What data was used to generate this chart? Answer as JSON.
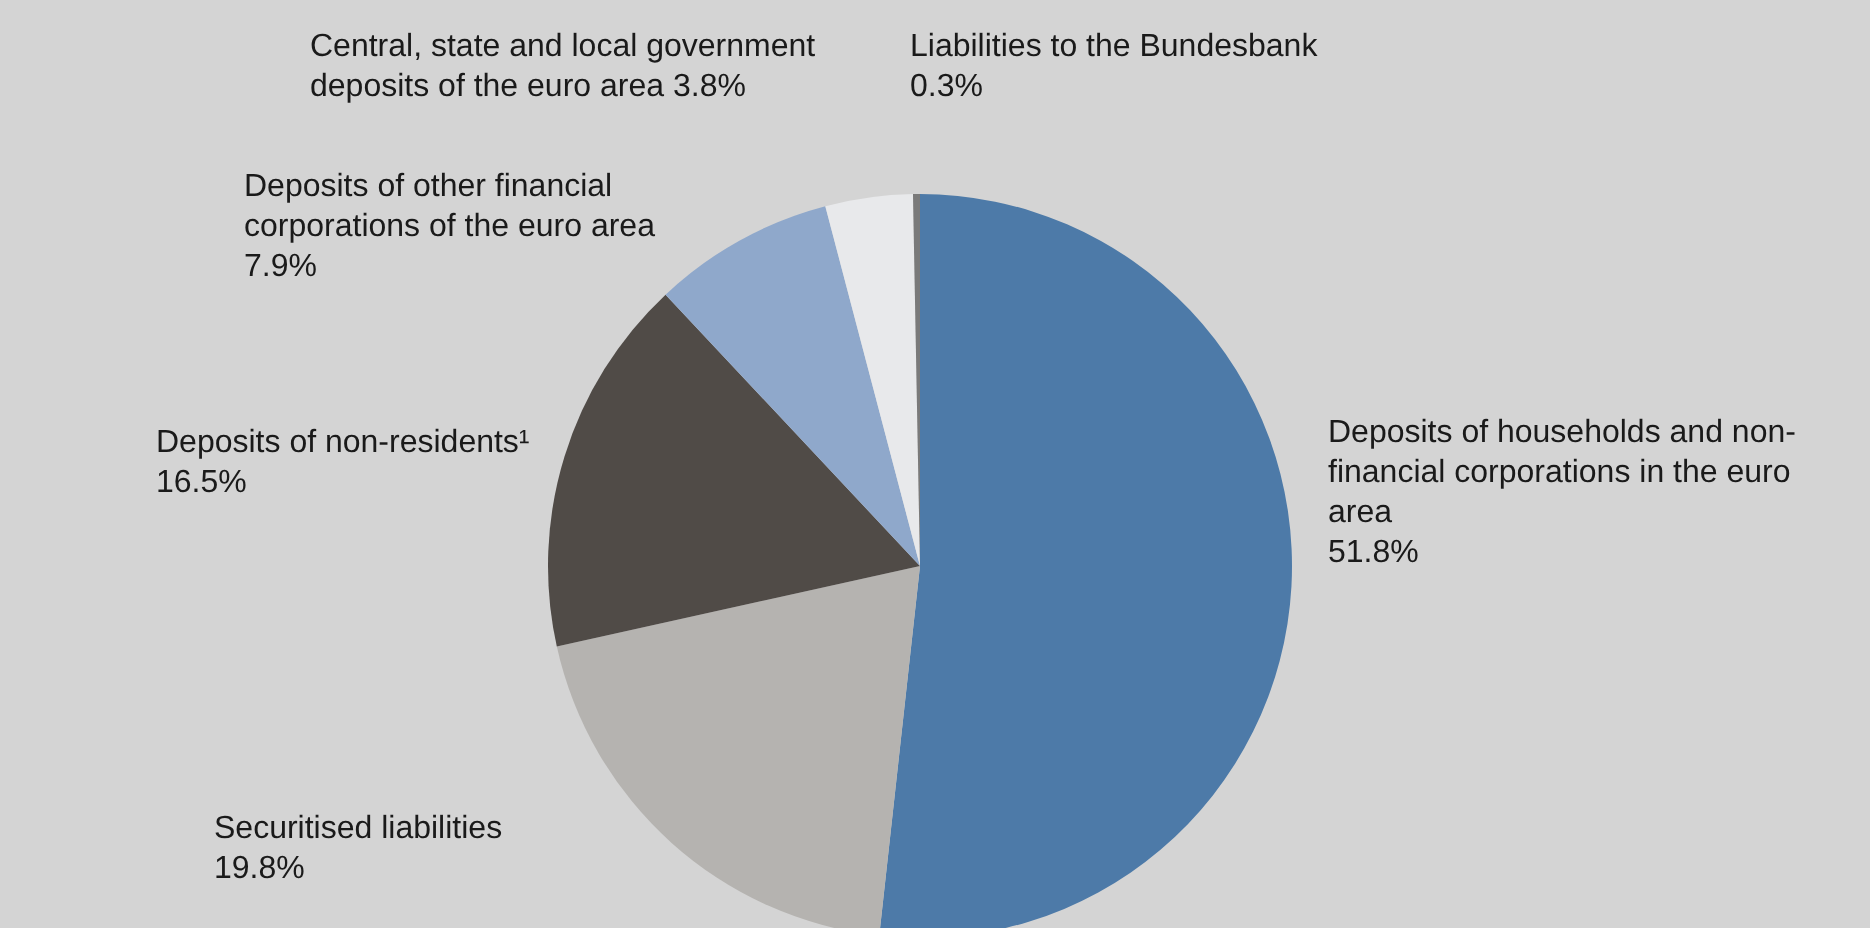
{
  "chart_data": {
    "type": "pie",
    "categories": [
      "Deposits of households and non-financial corporations in the euro area",
      "Securitised liabilities",
      "Deposits of non-residents¹",
      "Deposits of other financial corporations of the euro area",
      "Central, state and local government deposits of the euro area",
      "Liabilities to the Bundesbank"
    ],
    "values": [
      51.8,
      19.8,
      16.5,
      7.9,
      3.8,
      0.3
    ],
    "value_labels": [
      "51.8%",
      "19.8%",
      "16.5%",
      "7.9%",
      "3.8%",
      "0.3%"
    ],
    "colors": [
      "#4d7aa8",
      "#b5b3b0",
      "#504b47",
      "#8fa8cb",
      "#e8e9eb",
      "#7a7a7a"
    ]
  }
}
